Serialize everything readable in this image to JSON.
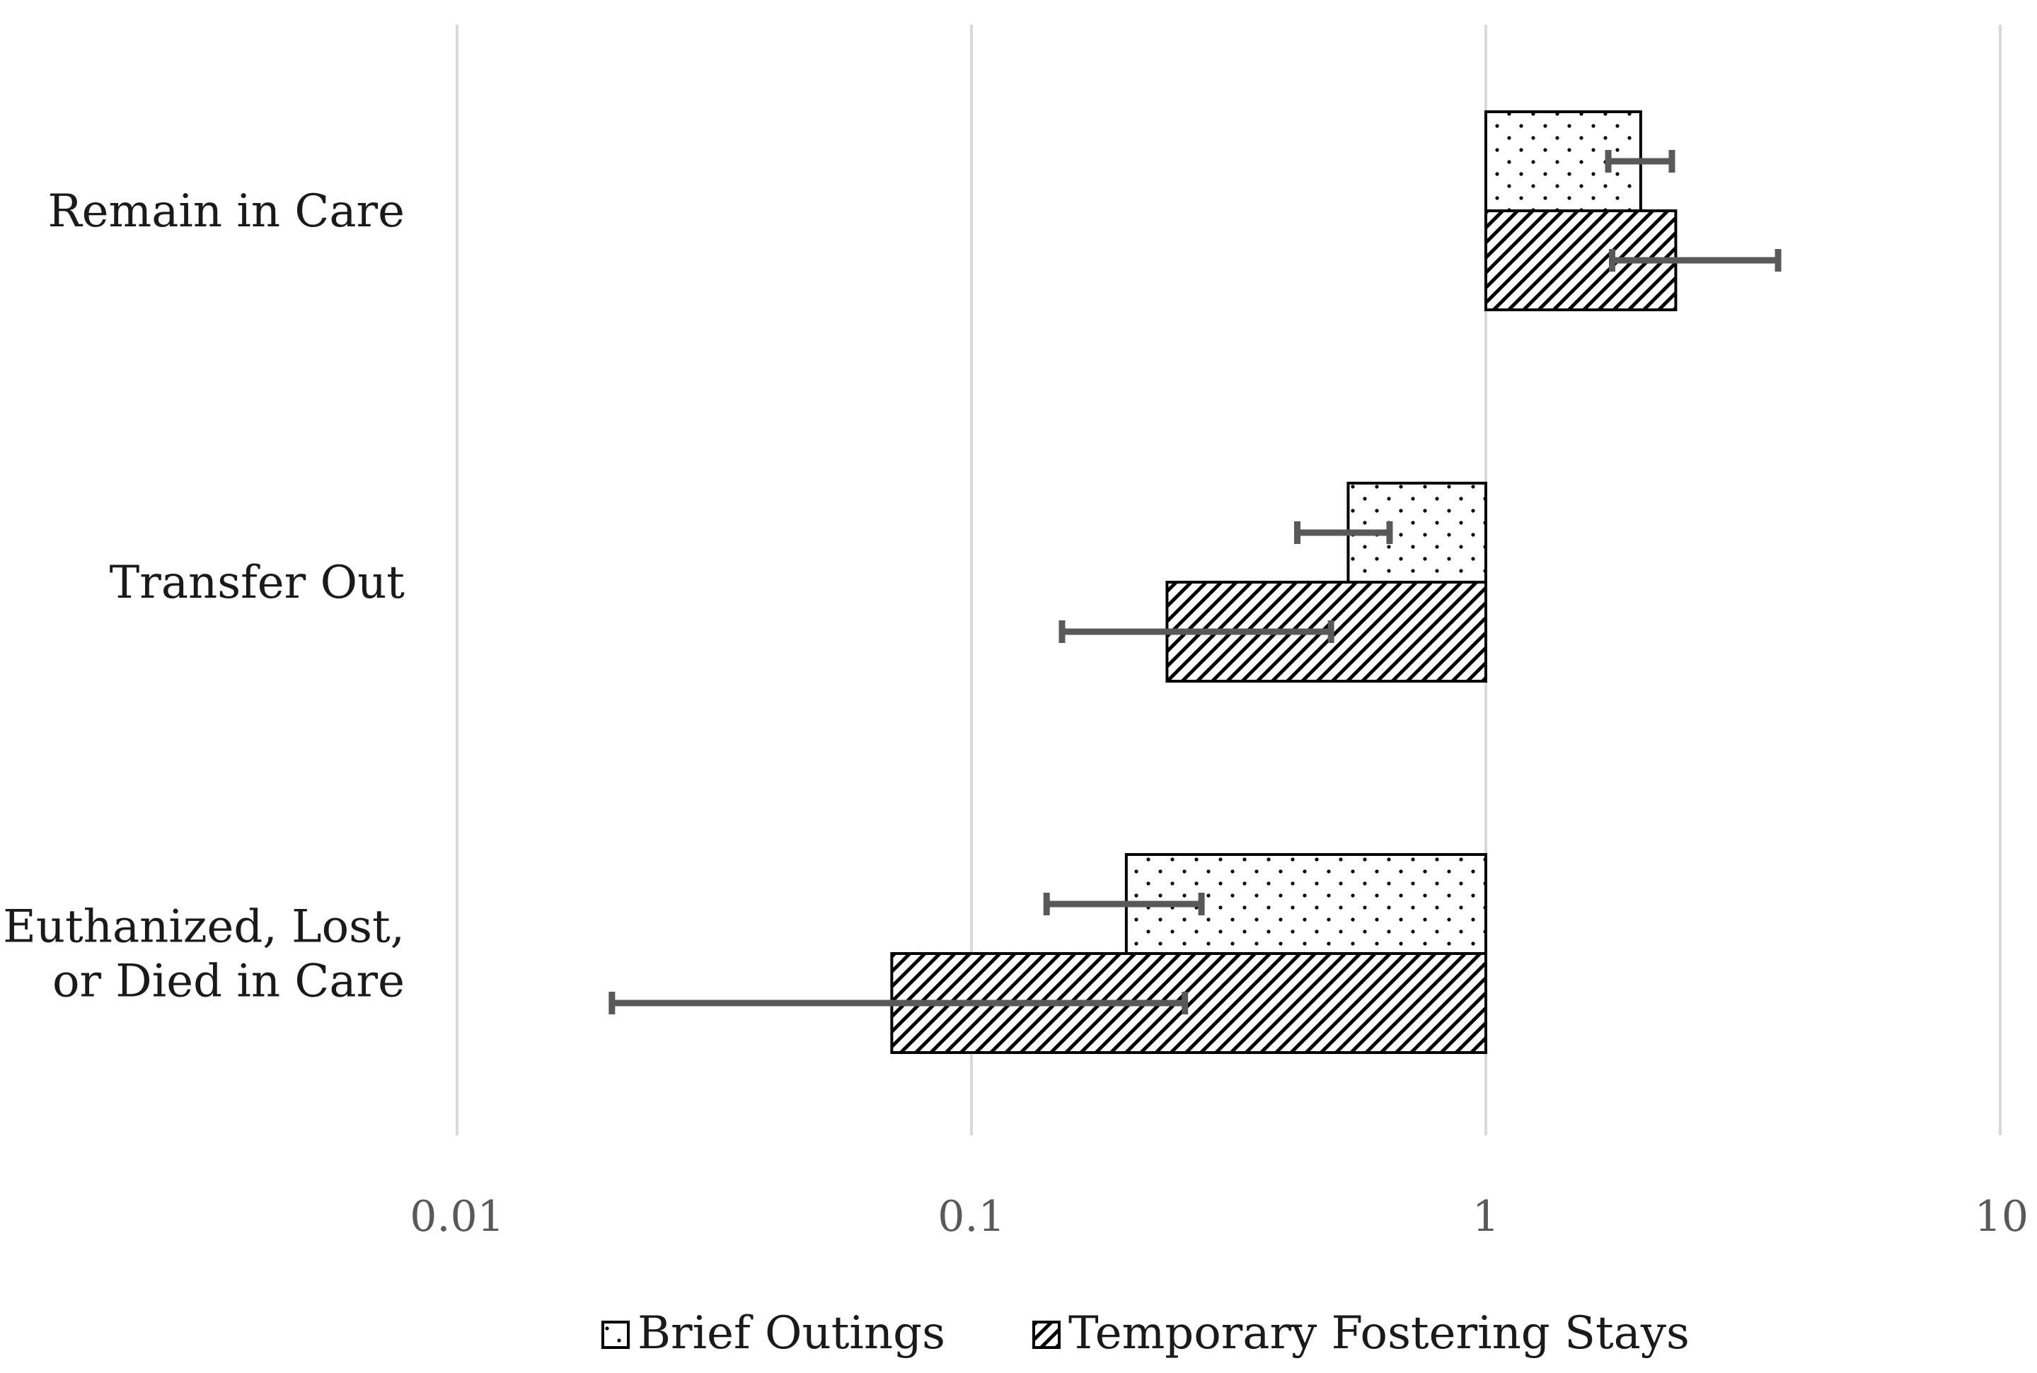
{
  "chart_data": {
    "type": "bar",
    "orientation": "horizontal",
    "x_scale": "log",
    "xlim": [
      0.01,
      10
    ],
    "x_ticks": [
      0.01,
      0.1,
      1,
      10
    ],
    "x_tick_labels": [
      "0.01",
      "0.1",
      "1",
      "10"
    ],
    "baseline": 1,
    "grid": true,
    "legend_position": "bottom",
    "categories": [
      "Remain in Care",
      "Transfer Out",
      "Euthanized, Lost, or Died in Care"
    ],
    "category_label_lines": [
      [
        "Remain in Care"
      ],
      [
        "Transfer Out"
      ],
      [
        "Euthanized, Lost,",
        "or Died in Care"
      ]
    ],
    "series": [
      {
        "name": "Brief Outings",
        "pattern": "dots",
        "values": [
          2.0,
          0.54,
          0.2
        ],
        "error_low": [
          1.73,
          0.43,
          0.14
        ],
        "error_high": [
          2.3,
          0.65,
          0.28
        ]
      },
      {
        "name": "Temporary Fostering Stays",
        "pattern": "diagonal-hatch",
        "values": [
          2.34,
          0.24,
          0.07
        ],
        "error_low": [
          1.76,
          0.15,
          0.02
        ],
        "error_high": [
          3.7,
          0.5,
          0.26
        ]
      }
    ],
    "colors": {
      "gridline": "#d9d9d9",
      "bar_outline": "#000000",
      "error_bar": "#595959"
    }
  }
}
